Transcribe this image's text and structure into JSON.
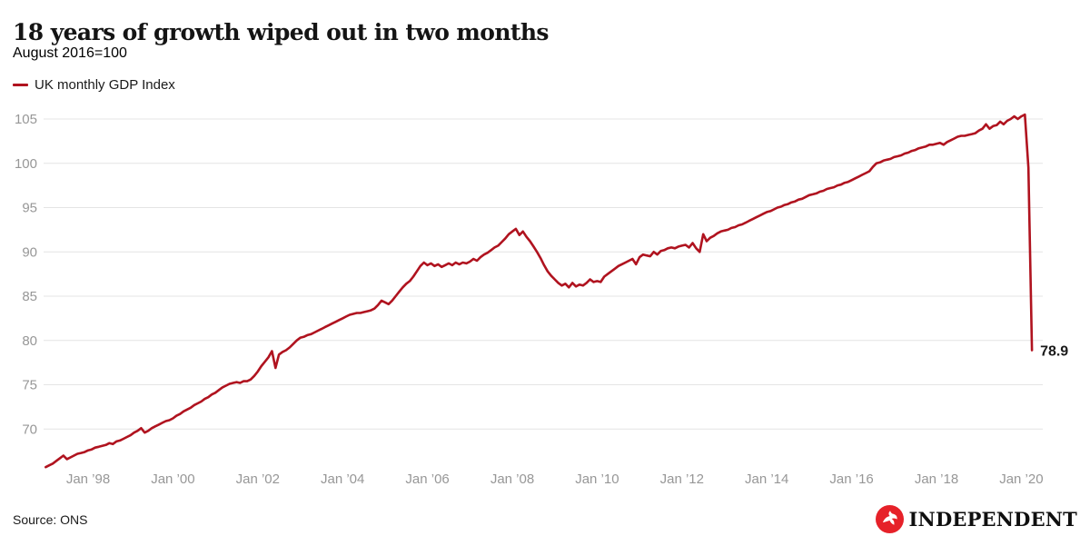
{
  "header": {
    "title": "18 years of growth wiped out in two months",
    "subtitle": "August 2016=100"
  },
  "legend": {
    "label": "UK monthly GDP Index"
  },
  "footer": {
    "source": "Source: ONS",
    "brand": "INDEPENDENT"
  },
  "colors": {
    "line": "#b0131f",
    "grid": "#e4e4e4",
    "tick_text": "#979797",
    "end_label_text": "#1a1a1a",
    "brand_red": "#e62129"
  },
  "chart_data": {
    "type": "line",
    "title": "18 years of growth wiped out in two months",
    "subtitle": "August 2016=100",
    "series_name": "UK monthly GDP Index",
    "x_start": "1997-01",
    "frequency": "monthly",
    "x_end": "2020-04",
    "end_label": "78.9",
    "final_value": 78.9,
    "peak_value": 105.5,
    "ylim": [
      64.5,
      107
    ],
    "grid": "horizontal-only",
    "legend_position": "top-left",
    "y_ticks": [
      70,
      75,
      80,
      85,
      90,
      95,
      100,
      105
    ],
    "x_ticks": [
      {
        "year": 1998,
        "label": "Jan ’98"
      },
      {
        "year": 2000,
        "label": "Jan ’00"
      },
      {
        "year": 2002,
        "label": "Jan ’02"
      },
      {
        "year": 2004,
        "label": "Jan ’04"
      },
      {
        "year": 2006,
        "label": "Jan ’06"
      },
      {
        "year": 2008,
        "label": "Jan ’08"
      },
      {
        "year": 2010,
        "label": "Jan ’10"
      },
      {
        "year": 2012,
        "label": "Jan ’12"
      },
      {
        "year": 2014,
        "label": "Jan ’14"
      },
      {
        "year": 2016,
        "label": "Jan ’16"
      },
      {
        "year": 2018,
        "label": "Jan ’18"
      },
      {
        "year": 2020,
        "label": "Jan ’20"
      }
    ],
    "values": [
      65.7,
      65.9,
      66.1,
      66.4,
      66.7,
      67.0,
      66.6,
      66.8,
      67.0,
      67.2,
      67.3,
      67.4,
      67.6,
      67.7,
      67.9,
      68.0,
      68.1,
      68.2,
      68.4,
      68.3,
      68.6,
      68.7,
      68.9,
      69.1,
      69.3,
      69.6,
      69.8,
      70.1,
      69.6,
      69.8,
      70.1,
      70.3,
      70.5,
      70.7,
      70.9,
      71.0,
      71.2,
      71.5,
      71.7,
      72.0,
      72.2,
      72.4,
      72.7,
      72.9,
      73.1,
      73.4,
      73.6,
      73.9,
      74.1,
      74.4,
      74.7,
      74.9,
      75.1,
      75.2,
      75.3,
      75.2,
      75.4,
      75.4,
      75.6,
      76.0,
      76.5,
      77.1,
      77.6,
      78.1,
      78.8,
      76.9,
      78.4,
      78.7,
      78.9,
      79.2,
      79.6,
      80.0,
      80.3,
      80.4,
      80.6,
      80.7,
      80.9,
      81.1,
      81.3,
      81.5,
      81.7,
      81.9,
      82.1,
      82.3,
      82.5,
      82.7,
      82.9,
      83.0,
      83.1,
      83.1,
      83.2,
      83.3,
      83.4,
      83.6,
      84.0,
      84.5,
      84.3,
      84.1,
      84.5,
      85.0,
      85.5,
      86.0,
      86.4,
      86.7,
      87.2,
      87.8,
      88.4,
      88.8,
      88.5,
      88.7,
      88.4,
      88.6,
      88.3,
      88.5,
      88.7,
      88.5,
      88.8,
      88.6,
      88.8,
      88.7,
      88.9,
      89.2,
      89.0,
      89.4,
      89.7,
      89.9,
      90.2,
      90.5,
      90.7,
      91.1,
      91.5,
      92.0,
      92.3,
      92.6,
      91.9,
      92.3,
      91.7,
      91.2,
      90.6,
      90.0,
      89.3,
      88.5,
      87.8,
      87.3,
      86.9,
      86.5,
      86.2,
      86.4,
      86.0,
      86.5,
      86.1,
      86.3,
      86.2,
      86.5,
      86.9,
      86.6,
      86.7,
      86.6,
      87.2,
      87.5,
      87.8,
      88.1,
      88.4,
      88.6,
      88.8,
      89.0,
      89.2,
      88.6,
      89.4,
      89.7,
      89.6,
      89.5,
      90.0,
      89.7,
      90.1,
      90.2,
      90.4,
      90.5,
      90.4,
      90.6,
      90.7,
      90.8,
      90.5,
      91.0,
      90.4,
      90.0,
      92.0,
      91.2,
      91.6,
      91.8,
      92.1,
      92.3,
      92.4,
      92.5,
      92.7,
      92.8,
      93.0,
      93.1,
      93.3,
      93.5,
      93.7,
      93.9,
      94.1,
      94.3,
      94.5,
      94.6,
      94.8,
      95.0,
      95.1,
      95.3,
      95.4,
      95.6,
      95.7,
      95.9,
      96.0,
      96.2,
      96.4,
      96.5,
      96.6,
      96.8,
      96.9,
      97.1,
      97.2,
      97.3,
      97.5,
      97.6,
      97.8,
      97.9,
      98.1,
      98.3,
      98.5,
      98.7,
      98.9,
      99.1,
      99.6,
      100.0,
      100.1,
      100.3,
      100.4,
      100.5,
      100.7,
      100.8,
      100.9,
      101.1,
      101.2,
      101.4,
      101.5,
      101.7,
      101.8,
      101.9,
      102.1,
      102.1,
      102.2,
      102.3,
      102.1,
      102.4,
      102.6,
      102.8,
      103.0,
      103.1,
      103.1,
      103.2,
      103.3,
      103.4,
      103.7,
      103.9,
      104.4,
      103.9,
      104.2,
      104.3,
      104.7,
      104.4,
      104.8,
      105.0,
      105.3,
      105.0,
      105.3,
      105.5,
      99.5,
      78.9
    ]
  }
}
